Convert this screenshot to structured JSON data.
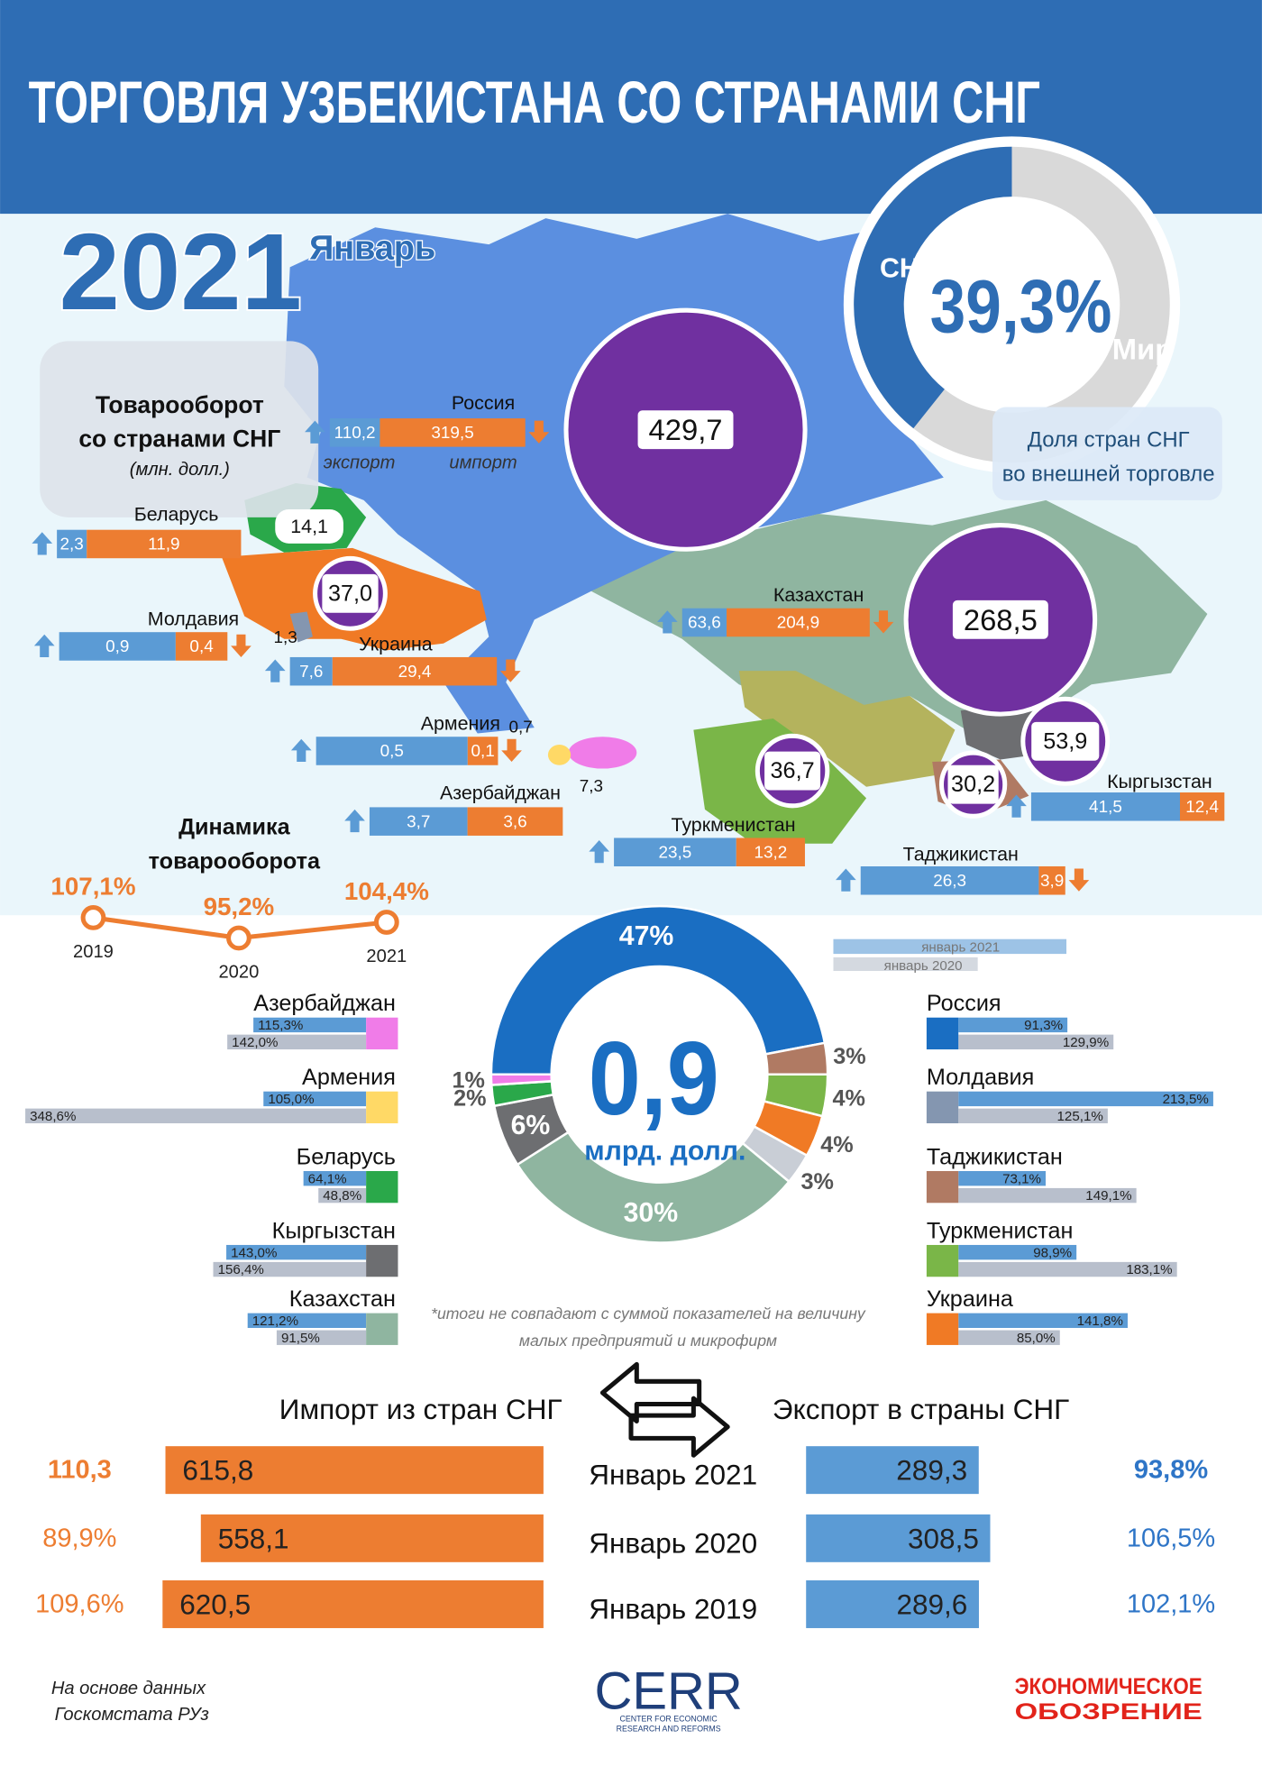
{
  "header": {
    "title": "ТОРГОВЛЯ УЗБЕКИСТАНА СО СТРАНАМИ СНГ",
    "year": "2021",
    "month": "Январь"
  },
  "cis_share": {
    "value": {
      "value": 39.3,
      "label": "39,3%"
    },
    "cis_label": "СНГ",
    "world_label": "Мир",
    "cis_color": "#2e6db4",
    "world_color": "#d9d9d9",
    "caption": [
      "Доля стран СНГ",
      "во внешней торговле"
    ]
  },
  "turnover": {
    "title": [
      "Товарооборот",
      "со странами СНГ"
    ],
    "unit": "(млн. долл.)",
    "export_label": "экспорт",
    "import_label": "импорт",
    "export_color": "#5b9bd5",
    "import_color": "#ed7d31",
    "circle_color": "#7030a0",
    "countries": [
      {
        "name": "Россия",
        "export": {
          "value": 110.2,
          "label": "110,2"
        },
        "import": {
          "value": 319.5,
          "label": "319,5"
        },
        "total": {
          "value": 429.7,
          "label": "429,7"
        },
        "trend": [
          "up",
          "down"
        ]
      },
      {
        "name": "Беларусь",
        "export": {
          "value": 2.3,
          "label": "2,3"
        },
        "import": {
          "value": 11.9,
          "label": "11,9"
        },
        "total": {
          "value": 14.1,
          "label": "14,1"
        },
        "trend": [
          "up"
        ]
      },
      {
        "name": "Молдавия",
        "export": {
          "value": 0.9,
          "label": "0,9"
        },
        "import": {
          "value": 0.4,
          "label": "0,4"
        },
        "total": {
          "value": 1.3,
          "label": "1,3"
        },
        "trend": [
          "up",
          "down"
        ]
      },
      {
        "name": "Украина",
        "export": {
          "value": 7.6,
          "label": "7,6"
        },
        "import": {
          "value": 29.4,
          "label": "29,4"
        },
        "total": {
          "value": 37.0,
          "label": "37,0"
        },
        "trend": [
          "up",
          "down"
        ]
      },
      {
        "name": "Армения",
        "export": {
          "value": 0.5,
          "label": "0,5"
        },
        "import": {
          "value": 0.1,
          "label": "0,1"
        },
        "total": {
          "value": 0.7,
          "label": "0,7"
        },
        "trend": [
          "up",
          "down"
        ]
      },
      {
        "name": "Азербайджан",
        "export": {
          "value": 3.7,
          "label": "3,7"
        },
        "import": {
          "value": 3.6,
          "label": "3,6"
        },
        "total": {
          "value": 7.3,
          "label": "7,3"
        },
        "trend": [
          "up"
        ]
      },
      {
        "name": "Казахстан",
        "export": {
          "value": 63.6,
          "label": "63,6"
        },
        "import": {
          "value": 204.9,
          "label": "204,9"
        },
        "total": {
          "value": 268.5,
          "label": "268,5"
        },
        "trend": [
          "up",
          "down"
        ]
      },
      {
        "name": "Туркменистан",
        "export": {
          "value": 23.5,
          "label": "23,5"
        },
        "import": {
          "value": 13.2,
          "label": "13,2"
        },
        "total": {
          "value": 36.7,
          "label": "36,7"
        },
        "trend": [
          "up"
        ]
      },
      {
        "name": "Кыргызстан",
        "export": {
          "value": 41.5,
          "label": "41,5"
        },
        "import": {
          "value": 12.4,
          "label": "12,4"
        },
        "total": {
          "value": 53.9,
          "label": "53,9"
        },
        "trend": [
          "up"
        ]
      },
      {
        "name": "Таджикистан",
        "export": {
          "value": 26.3,
          "label": "26,3"
        },
        "import": {
          "value": 3.9,
          "label": "3,9"
        },
        "total": {
          "value": 30.2,
          "label": "30,2"
        },
        "trend": [
          "up",
          "down"
        ]
      }
    ]
  },
  "dynamics": {
    "title": [
      "Динамика",
      "товарооборота"
    ],
    "years": [
      "2019",
      "2020",
      "2021"
    ],
    "values": [
      {
        "value": 107.1,
        "label": "107,1%"
      },
      {
        "value": 95.2,
        "label": "95,2%"
      },
      {
        "value": 104.4,
        "label": "104,4%"
      }
    ],
    "color": "#ed7d31"
  },
  "structure": {
    "total": "0,9",
    "unit": "млрд. долл.",
    "segments": [
      {
        "value": 47,
        "label": "47%",
        "color": "#1a6ec2"
      },
      {
        "value": 3,
        "label": "3%",
        "color": "#b07a63"
      },
      {
        "value": 4,
        "label": "4%",
        "color": "#7ab648"
      },
      {
        "value": 4,
        "label": "4%",
        "color": "#f07a25"
      },
      {
        "value": 3,
        "label": "3%",
        "color": "#c9ced6"
      },
      {
        "value": 30,
        "label": "30%",
        "color": "#8fb5a0"
      },
      {
        "value": 6,
        "label": "6%",
        "color": "#6d6e71"
      },
      {
        "value": 2,
        "label": "2%",
        "color": "#2aa84a"
      },
      {
        "value": 1,
        "label": "1%",
        "color": "#f07ce8"
      }
    ],
    "note": [
      "*итоги не совпадают с суммой показателей на величину",
      "малых предприятий и микрофирм"
    ]
  },
  "growth": {
    "legend": [
      "январь 2021",
      "январь 2020"
    ],
    "colors": [
      "#5b9bd5",
      "#b8bfcc"
    ],
    "left": [
      {
        "name": "Азербайджан",
        "color": "#f07ce8",
        "values": [
          {
            "value": 115.3,
            "label": "115,3%"
          },
          {
            "value": 142.0,
            "label": "142,0%"
          }
        ]
      },
      {
        "name": "Армения",
        "color": "#ffd966",
        "values": [
          {
            "value": 105.0,
            "label": "105,0%"
          },
          {
            "value": 348.6,
            "label": "348,6%"
          }
        ]
      },
      {
        "name": "Беларусь",
        "color": "#2aa84a",
        "values": [
          {
            "value": 64.1,
            "label": "64,1%"
          },
          {
            "value": 48.8,
            "label": "48,8%"
          }
        ]
      },
      {
        "name": "Кыргызстан",
        "color": "#6d6e71",
        "values": [
          {
            "value": 143.0,
            "label": "143,0%"
          },
          {
            "value": 156.4,
            "label": "156,4%"
          }
        ]
      },
      {
        "name": "Казахстан",
        "color": "#8fb5a0",
        "values": [
          {
            "value": 121.2,
            "label": "121,2%"
          },
          {
            "value": 91.5,
            "label": "91,5%"
          }
        ]
      }
    ],
    "right": [
      {
        "name": "Россия",
        "color": "#1a6ec2",
        "values": [
          {
            "value": 91.3,
            "label": "91,3%"
          },
          {
            "value": 129.9,
            "label": "129,9%"
          }
        ]
      },
      {
        "name": "Молдавия",
        "color": "#8496b0",
        "values": [
          {
            "value": 213.5,
            "label": "213,5%"
          },
          {
            "value": 125.1,
            "label": "125,1%"
          }
        ]
      },
      {
        "name": "Таджикистан",
        "color": "#b07a63",
        "values": [
          {
            "value": 73.1,
            "label": "73,1%"
          },
          {
            "value": 149.1,
            "label": "149,1%"
          }
        ]
      },
      {
        "name": "Туркменистан",
        "color": "#7ab648",
        "values": [
          {
            "value": 98.9,
            "label": "98,9%"
          },
          {
            "value": 183.1,
            "label": "183,1%"
          }
        ]
      },
      {
        "name": "Украина",
        "color": "#f07a25",
        "values": [
          {
            "value": 141.8,
            "label": "141,8%"
          },
          {
            "value": 85.0,
            "label": "85,0%"
          }
        ]
      }
    ]
  },
  "monthly": {
    "import_title": "Импорт из стран СНГ",
    "export_title": "Экспорт в страны СНГ",
    "rows": [
      {
        "period": "Январь 2021",
        "import": {
          "value": 615.8,
          "label": "615,8"
        },
        "import_growth": "110,3",
        "export": {
          "value": 289.3,
          "label": "289,3"
        },
        "export_growth": "93,8%"
      },
      {
        "period": "Январь 2020",
        "import": {
          "value": 558.1,
          "label": "558,1"
        },
        "import_growth": "89,9%",
        "export": {
          "value": 308.5,
          "label": "308,5"
        },
        "export_growth": "106,5%"
      },
      {
        "period": "Январь 2019",
        "import": {
          "value": 620.5,
          "label": "620,5"
        },
        "import_growth": "109,6%",
        "export": {
          "value": 289.6,
          "label": "289,6"
        },
        "export_growth": "102,1%"
      }
    ]
  },
  "footer": {
    "source": [
      "На основе данных",
      "Госкомстата РУз"
    ],
    "logo": "CERR",
    "logo_sub": [
      "CENTER FOR ECONOMIC",
      "RESEARCH AND REFORMS"
    ],
    "publisher": [
      "ЭКОНОМИЧЕСКОЕ",
      "ОБОЗРЕНИЕ"
    ]
  }
}
